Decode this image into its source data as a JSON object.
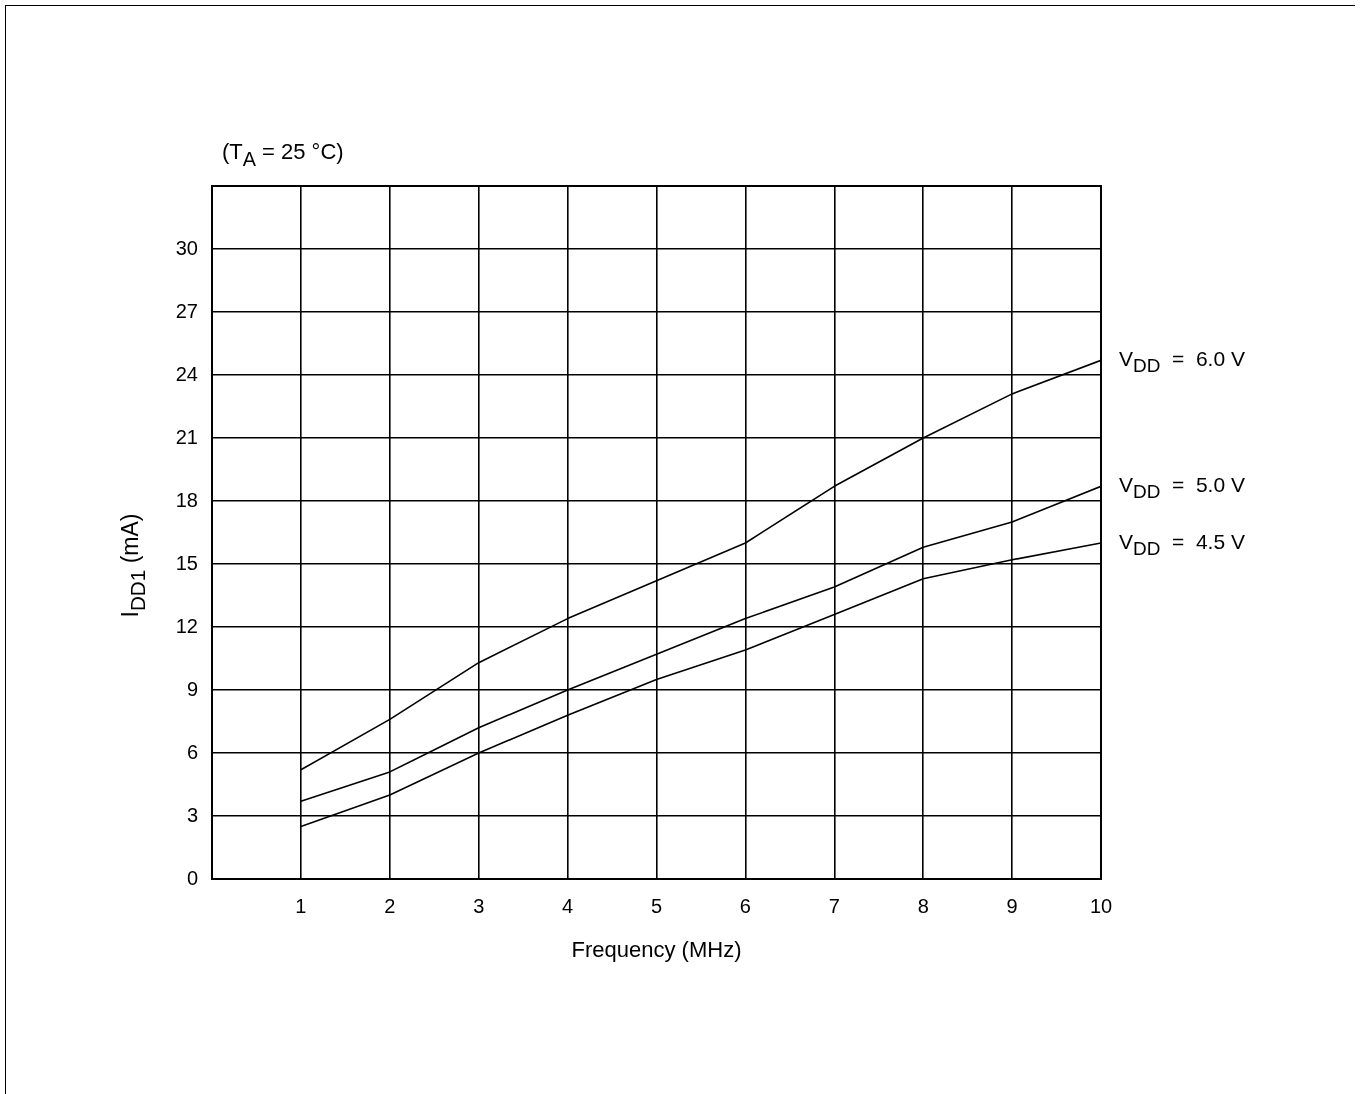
{
  "chart_data": {
    "type": "line",
    "title": "(T$_{A}$ = 25 °C)",
    "xlabel": "Frequency (MHz)",
    "ylabel": "I$_{DD1}$ (mA)",
    "x": [
      1,
      2,
      3,
      4,
      5,
      6,
      7,
      8,
      9,
      10
    ],
    "series": [
      {
        "name": "V$_{DD}$  =  6.0 V",
        "color": "#000000",
        "values": [
          5.2,
          7.6,
          10.3,
          12.4,
          14.2,
          16.0,
          18.7,
          21.0,
          23.1,
          24.7
        ]
      },
      {
        "name": "V$_{DD}$  =  5.0 V",
        "color": "#000000",
        "values": [
          3.7,
          5.1,
          7.2,
          9.0,
          10.7,
          12.4,
          13.9,
          15.8,
          17.0,
          18.7
        ]
      },
      {
        "name": "V$_{DD}$  =  4.5 V",
        "color": "#000000",
        "values": [
          2.5,
          4.0,
          6.0,
          7.8,
          9.5,
          10.9,
          12.6,
          14.3,
          15.2,
          16.0
        ]
      }
    ],
    "xlim": [
      0,
      10
    ],
    "xticks": [
      1,
      2,
      3,
      4,
      5,
      6,
      7,
      8,
      9,
      10
    ],
    "ylim": [
      0,
      33
    ],
    "yticks": [
      0,
      3,
      6,
      9,
      12,
      15,
      18,
      21,
      24,
      27,
      30
    ],
    "grid": true
  }
}
